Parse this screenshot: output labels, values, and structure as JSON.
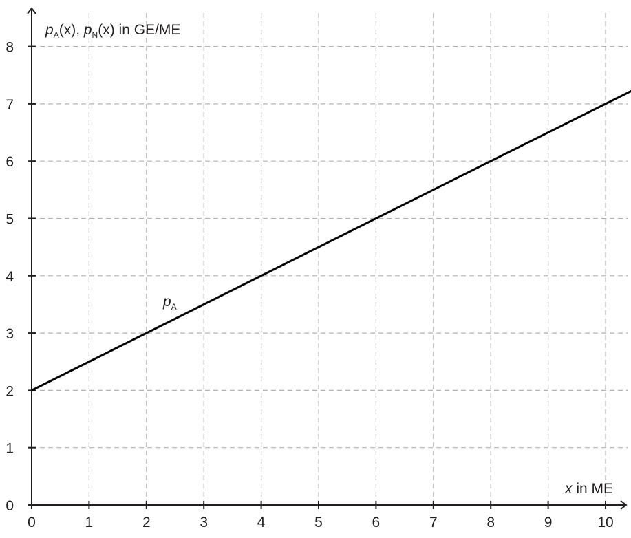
{
  "chart_data": {
    "type": "line",
    "ylabel": {
      "pA": "p",
      "pA_sub": "A",
      "arg1": "(x), ",
      "pN": "p",
      "pN_sub": "N",
      "arg2": "(x)",
      "unit": " in GE/ME"
    },
    "xlabel": {
      "var": "x",
      "unit": " in ME"
    },
    "xlim": [
      0,
      10.5
    ],
    "ylim": [
      0,
      8.4
    ],
    "xticks": [
      0,
      1,
      2,
      3,
      4,
      5,
      6,
      7,
      8,
      9,
      10
    ],
    "yticks": [
      0,
      1,
      2,
      3,
      4,
      5,
      6,
      7,
      8
    ],
    "grid": true,
    "series": [
      {
        "name": "p",
        "name_sub": "A",
        "x": [
          0,
          10.5
        ],
        "y": [
          2,
          7.25
        ],
        "color": "#000000"
      }
    ],
    "annotations": [
      {
        "text": "p",
        "sub": "A",
        "x": 2.3,
        "y": 3.45
      }
    ]
  }
}
